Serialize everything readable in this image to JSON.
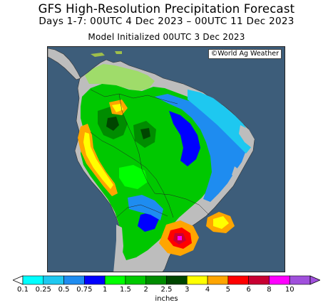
{
  "title": "GFS High-Resolution Precipitation Forecast",
  "period": "Days 1-7: 00UTC 4 Dec 2023 – 00UTC 11 Dec 2023",
  "initialized": "Model Initialized 00UTC 3 Dec 2023",
  "credit": "©World Ag Weather",
  "legend": {
    "units": "inches",
    "ticks": [
      "0.1",
      "0.25",
      "0.5",
      "0.75",
      "1",
      "1.5",
      "2",
      "2.5",
      "3",
      "4",
      "5",
      "6",
      "8",
      "10"
    ],
    "colors": [
      "#00ffff",
      "#1ec8f0",
      "#1e8cf0",
      "#0000ff",
      "#00ff00",
      "#00c800",
      "#008c00",
      "#004600",
      "#ffff00",
      "#ffa500",
      "#ff0000",
      "#c80032",
      "#ff00ff",
      "#a050dc"
    ]
  },
  "colors": {
    "ocean": "#3d5d7a",
    "dry_land": "#bdbdbd"
  }
}
